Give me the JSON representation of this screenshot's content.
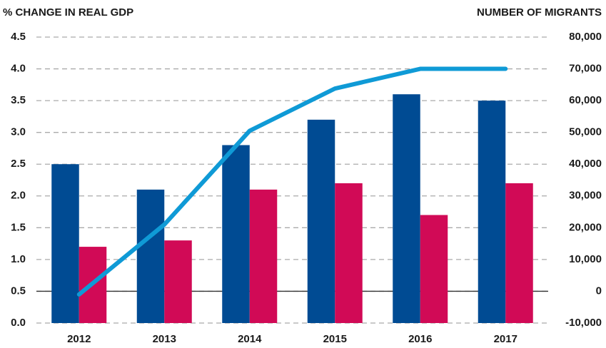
{
  "chart_data": {
    "type": "bar",
    "y_label": "% CHANGE IN REAL GDP",
    "y2_label": "NUMBER OF MIGRANTS",
    "categories": [
      "2012",
      "2013",
      "2014",
      "2015",
      "2016",
      "2017"
    ],
    "series": [
      {
        "type": "bar",
        "color": "#004b93",
        "values": [
          2.5,
          2.1,
          2.8,
          3.2,
          3.6,
          3.5
        ]
      },
      {
        "type": "bar",
        "color": "#d10a56",
        "values": [
          1.2,
          1.3,
          2.1,
          2.2,
          1.7,
          2.2
        ]
      },
      {
        "type": "line",
        "axis": "y2",
        "color": "#0f9ad6",
        "values": [
          -1000,
          21000,
          50500,
          63800,
          70000,
          70000
        ]
      }
    ],
    "ylim": [
      0,
      4.5
    ],
    "yticks": [
      {
        "value": 0,
        "label": "0.0"
      },
      0.5,
      {
        "value": 1,
        "label": "1.0"
      },
      1.5,
      {
        "value": 2,
        "label": "2.0"
      },
      2.5,
      {
        "value": 3,
        "label": "3.0"
      },
      3.5,
      {
        "value": 4,
        "label": "4.0"
      },
      4.5
    ],
    "y2lim": [
      -10000,
      80000
    ],
    "y2ticks": [
      {
        "value": -10000,
        "label": "-10,000"
      },
      0,
      {
        "value": 10000,
        "label": "10,000"
      },
      {
        "value": 20000,
        "label": "20,000"
      },
      {
        "value": 30000,
        "label": "30,000"
      },
      {
        "value": 40000,
        "label": "40,000"
      },
      {
        "value": 50000,
        "label": "50,000"
      },
      {
        "value": 60000,
        "label": "60,000"
      },
      {
        "value": 70000,
        "label": "70,000"
      },
      {
        "value": 80000,
        "label": "80,000"
      }
    ],
    "grid": true
  }
}
